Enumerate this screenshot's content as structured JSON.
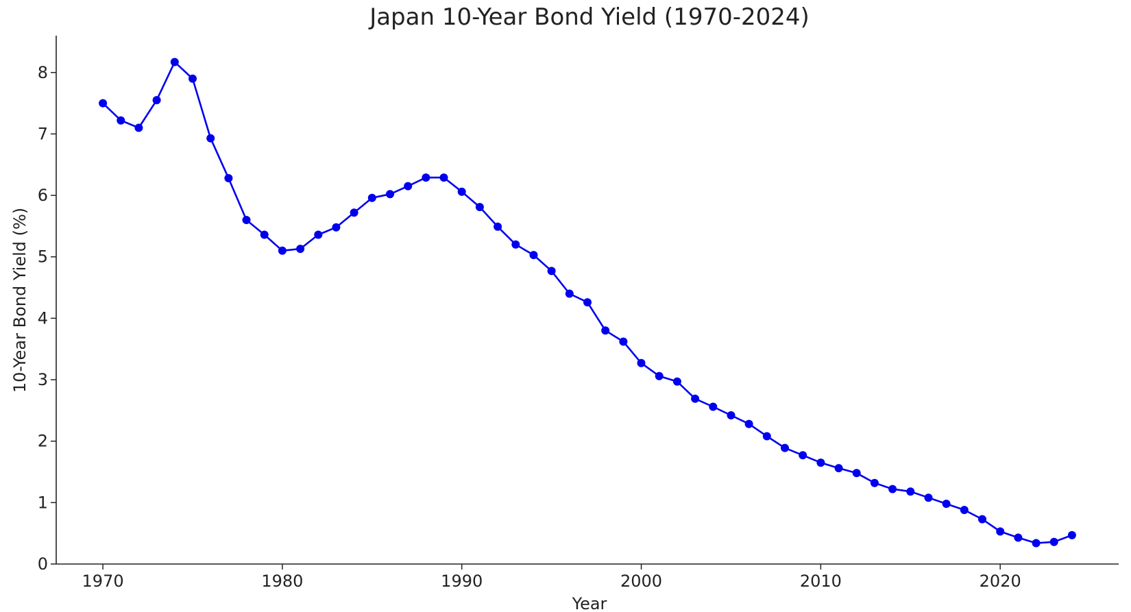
{
  "chart_data": {
    "type": "line",
    "title": "Japan 10-Year Bond Yield (1970-2024)",
    "xlabel": "Year",
    "ylabel": "10-Year Bond Yield (%)",
    "xlim": [
      1967.4,
      2026.6
    ],
    "ylim": [
      0,
      8.6
    ],
    "x_ticks": [
      1970,
      1980,
      1990,
      2000,
      2010,
      2020
    ],
    "y_ticks": [
      0,
      1,
      2,
      3,
      4,
      5,
      6,
      7,
      8
    ],
    "grid": false,
    "legend": "none",
    "series_color": "#0000ee",
    "series": [
      {
        "marker": "circle",
        "x": [
          1970,
          1971,
          1972,
          1973,
          1974,
          1975,
          1976,
          1977,
          1978,
          1979,
          1980,
          1981,
          1982,
          1983,
          1984,
          1985,
          1986,
          1987,
          1988,
          1989,
          1990,
          1991,
          1992,
          1993,
          1994,
          1995,
          1996,
          1997,
          1998,
          1999,
          2000,
          2001,
          2002,
          2003,
          2004,
          2005,
          2006,
          2007,
          2008,
          2009,
          2010,
          2011,
          2012,
          2013,
          2014,
          2015,
          2016,
          2017,
          2018,
          2019,
          2020,
          2021,
          2022,
          2023,
          2024
        ],
        "values": [
          7.5,
          7.22,
          7.1,
          7.55,
          8.17,
          7.9,
          6.93,
          6.28,
          5.6,
          5.36,
          5.1,
          5.13,
          5.36,
          5.48,
          5.72,
          5.96,
          6.02,
          6.15,
          6.29,
          6.29,
          6.06,
          5.81,
          5.49,
          5.2,
          5.03,
          4.77,
          4.4,
          4.26,
          3.8,
          3.62,
          3.27,
          3.06,
          2.97,
          2.69,
          2.56,
          2.42,
          2.28,
          2.08,
          1.89,
          1.77,
          1.65,
          1.56,
          1.48,
          1.32,
          1.22,
          1.18,
          1.08,
          0.98,
          0.88,
          0.73,
          0.53,
          0.43,
          0.34,
          0.36,
          0.47
        ]
      }
    ]
  }
}
